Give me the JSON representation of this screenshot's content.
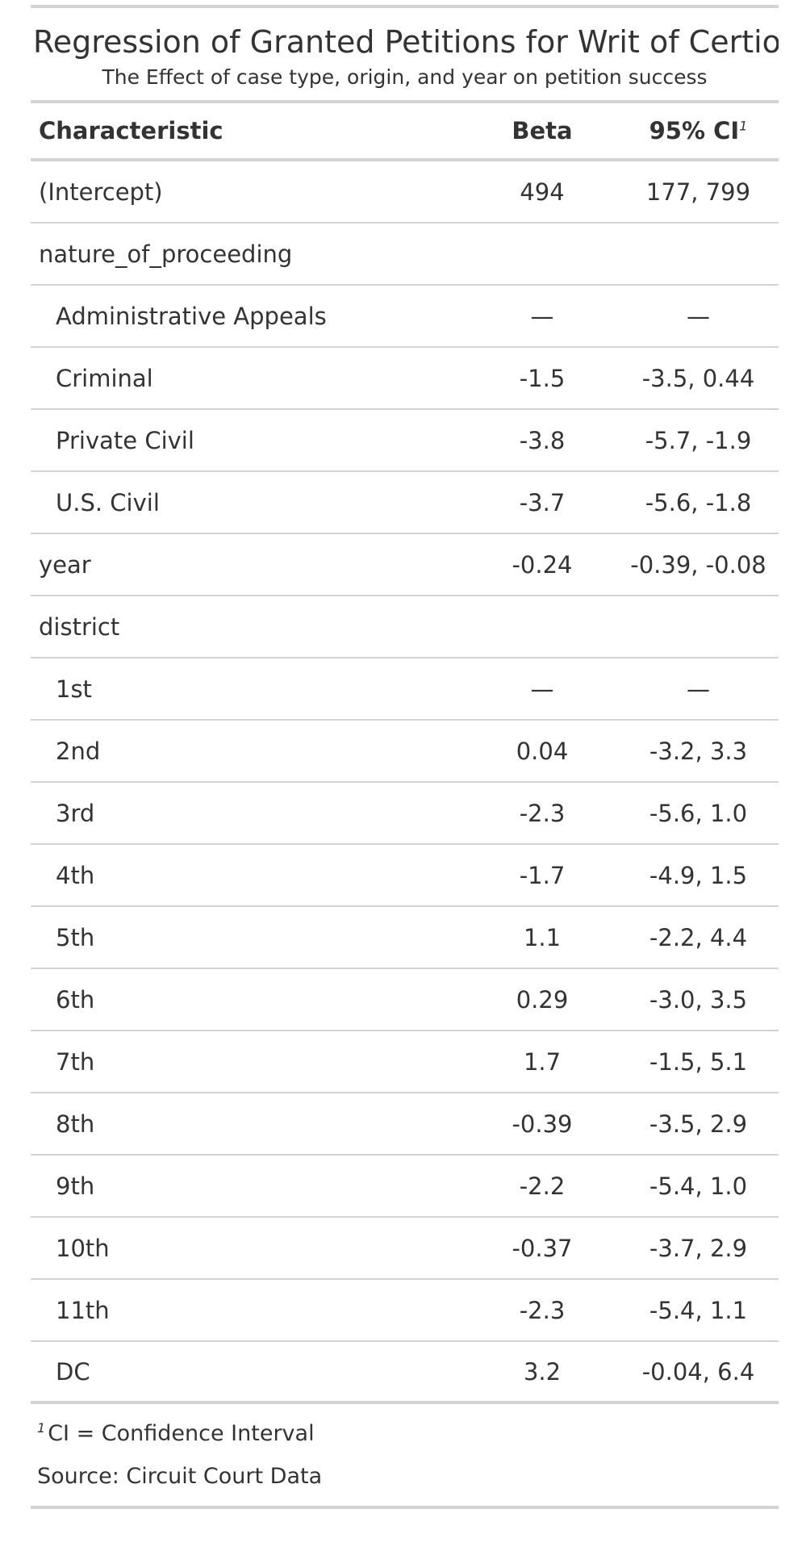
{
  "title": "Regression of Granted Petitions for Writ of Certiori",
  "subtitle": "The Effect of case type, origin, and year on petition success",
  "columns": {
    "characteristic": "Characteristic",
    "beta": "Beta",
    "ci": "95% CI",
    "ci_footnote_mark": "1"
  },
  "rows": [
    {
      "label": "(Intercept)",
      "beta": "494",
      "ci": "177, 799",
      "indent": false
    },
    {
      "label": "nature_of_proceeding",
      "beta": "",
      "ci": "",
      "indent": false
    },
    {
      "label": "Administrative Appeals",
      "beta": "—",
      "ci": "—",
      "indent": true
    },
    {
      "label": "Criminal",
      "beta": "-1.5",
      "ci": "-3.5, 0.44",
      "indent": true
    },
    {
      "label": "Private Civil",
      "beta": "-3.8",
      "ci": "-5.7, -1.9",
      "indent": true
    },
    {
      "label": "U.S. Civil",
      "beta": "-3.7",
      "ci": "-5.6, -1.8",
      "indent": true
    },
    {
      "label": "year",
      "beta": "-0.24",
      "ci": "-0.39, -0.08",
      "indent": false
    },
    {
      "label": "district",
      "beta": "",
      "ci": "",
      "indent": false
    },
    {
      "label": "1st",
      "beta": "—",
      "ci": "—",
      "indent": true
    },
    {
      "label": "2nd",
      "beta": "0.04",
      "ci": "-3.2, 3.3",
      "indent": true
    },
    {
      "label": "3rd",
      "beta": "-2.3",
      "ci": "-5.6, 1.0",
      "indent": true
    },
    {
      "label": "4th",
      "beta": "-1.7",
      "ci": "-4.9, 1.5",
      "indent": true
    },
    {
      "label": "5th",
      "beta": "1.1",
      "ci": "-2.2, 4.4",
      "indent": true
    },
    {
      "label": "6th",
      "beta": "0.29",
      "ci": "-3.0, 3.5",
      "indent": true
    },
    {
      "label": "7th",
      "beta": "1.7",
      "ci": "-1.5, 5.1",
      "indent": true
    },
    {
      "label": "8th",
      "beta": "-0.39",
      "ci": "-3.5, 2.9",
      "indent": true
    },
    {
      "label": "9th",
      "beta": "-2.2",
      "ci": "-5.4, 1.0",
      "indent": true
    },
    {
      "label": "10th",
      "beta": "-0.37",
      "ci": "-3.7, 2.9",
      "indent": true
    },
    {
      "label": "11th",
      "beta": "-2.3",
      "ci": "-5.4, 1.1",
      "indent": true
    },
    {
      "label": "DC",
      "beta": "3.2",
      "ci": "-0.04, 6.4",
      "indent": true
    }
  ],
  "footnote": {
    "mark": "1",
    "text": "CI = Confidence Interval"
  },
  "source": "Source: Circuit Court Data"
}
